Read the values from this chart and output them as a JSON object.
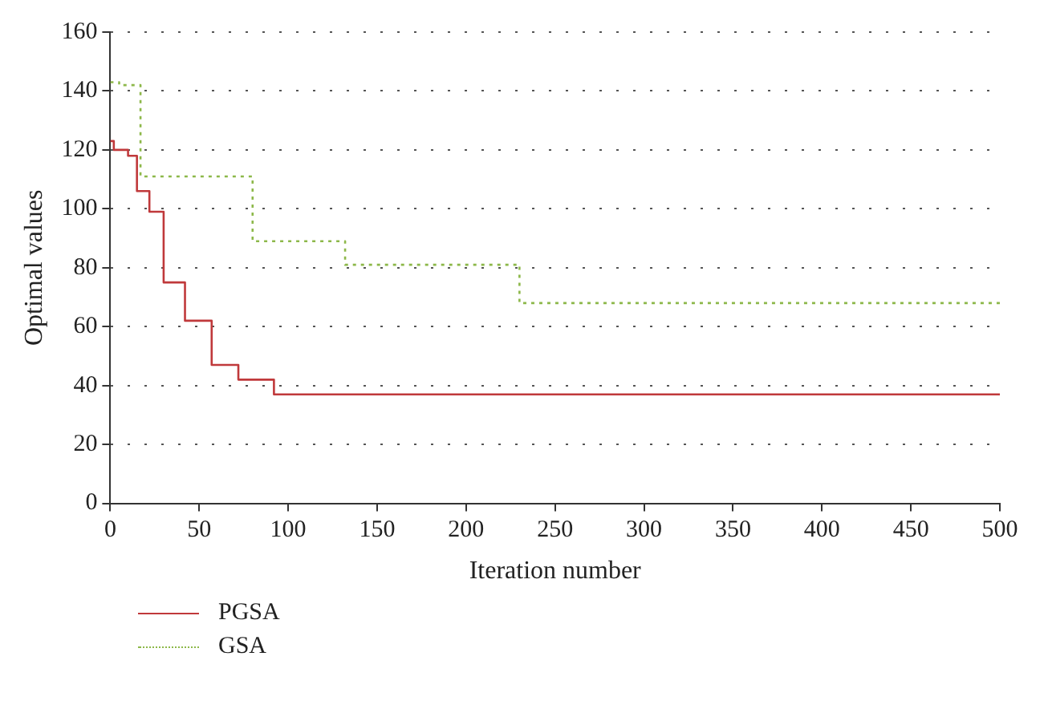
{
  "chart_data": {
    "type": "step",
    "xlabel": "Iteration number",
    "ylabel": "Optimal values",
    "xlim": [
      0,
      500
    ],
    "xticks": [
      0,
      50,
      100,
      150,
      200,
      250,
      300,
      350,
      400,
      450,
      500
    ],
    "ylim": [
      0,
      160
    ],
    "yticks": [
      0,
      20,
      40,
      60,
      80,
      100,
      120,
      140,
      160
    ],
    "grid": "y",
    "legend": "bottom left",
    "series": [
      {
        "name": "PGSA",
        "color": "#c0393b",
        "line_style": "solid",
        "x": [
          0,
          2,
          10,
          15,
          22,
          30,
          42,
          57,
          72,
          92,
          500
        ],
        "values": [
          123,
          120,
          118,
          106,
          99,
          75,
          62,
          47,
          42,
          37,
          37
        ]
      },
      {
        "name": "GSA",
        "color": "#8db84a",
        "line_style": "dotted",
        "x": [
          0,
          5,
          17,
          80,
          132,
          230,
          500
        ],
        "values": [
          143,
          142,
          111,
          89,
          81,
          68,
          68
        ]
      }
    ]
  }
}
